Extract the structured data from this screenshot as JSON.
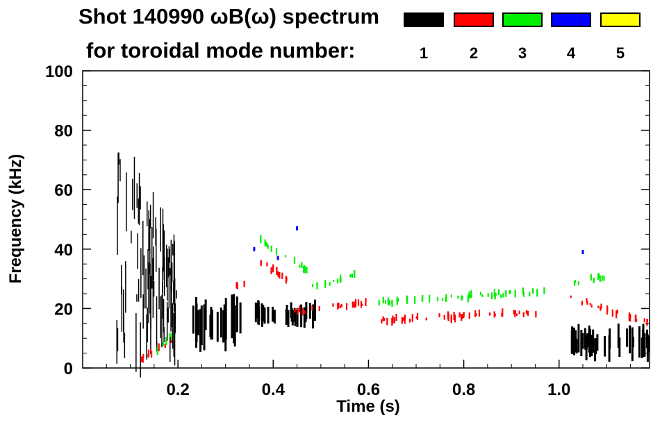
{
  "title_line1": "Shot 140990 ωB(ω) spectrum",
  "title_line2": "for toroidal mode number:",
  "legend": [
    {
      "label": "1",
      "color": "#000000"
    },
    {
      "label": "2",
      "color": "#ff0000"
    },
    {
      "label": "3",
      "color": "#00ee00"
    },
    {
      "label": "4",
      "color": "#0000ff"
    },
    {
      "label": "5",
      "color": "#ffff00"
    }
  ],
  "chart_data": {
    "type": "heatmap",
    "title": "Shot 140990 ωB(ω) spectrum",
    "xlabel": "Time (s)",
    "ylabel": "Frequency (kHz)",
    "xlim": [
      0.0,
      1.19
    ],
    "ylim": [
      0,
      100
    ],
    "x_ticks": [
      "0.2",
      "0.4",
      "0.6",
      "0.8",
      "1.0"
    ],
    "x_tick_values": [
      0.2,
      0.4,
      0.6,
      0.8,
      1.0
    ],
    "y_ticks": [
      "0",
      "20",
      "40",
      "60",
      "80",
      "100"
    ],
    "y_tick_values": [
      0,
      20,
      40,
      60,
      80,
      100
    ],
    "legend_title": "for toroidal mode number:",
    "legend_position": "top-right",
    "series": [
      {
        "name": "1",
        "color": "#000000",
        "features": [
          {
            "t": [
              0.07,
              0.2
            ],
            "f": [
              5,
              72
            ],
            "kind": "broadband"
          },
          {
            "t": [
              0.23,
              0.33
            ],
            "f": [
              5,
              25
            ],
            "kind": "burst"
          },
          {
            "t": [
              0.36,
              0.49
            ],
            "f": [
              13,
              23
            ],
            "kind": "burst"
          },
          {
            "t": [
              1.02,
              1.19
            ],
            "f": [
              2,
              15
            ],
            "kind": "burst"
          }
        ]
      },
      {
        "name": "2",
        "color": "#ff0000",
        "features": [
          {
            "t": [
              0.12,
              0.19
            ],
            "f": [
              3,
              10
            ],
            "kind": "chirp"
          },
          {
            "t": [
              0.32,
              0.34
            ],
            "f": [
              27,
              29
            ],
            "kind": "mode"
          },
          {
            "t": [
              0.37,
              0.46
            ],
            "f": [
              36,
              26
            ],
            "kind": "chirp"
          },
          {
            "t": [
              0.44,
              0.6
            ],
            "f": [
              19,
              22
            ],
            "kind": "mode"
          },
          {
            "t": [
              0.62,
              0.98
            ],
            "f": [
              16,
              19
            ],
            "kind": "mode"
          },
          {
            "t": [
              1.02,
              1.19
            ],
            "f": [
              24,
              15
            ],
            "kind": "chirp"
          }
        ]
      },
      {
        "name": "3",
        "color": "#00ee00",
        "features": [
          {
            "t": [
              0.15,
              0.19
            ],
            "f": [
              5,
              12
            ],
            "kind": "chirp"
          },
          {
            "t": [
              0.37,
              0.48
            ],
            "f": [
              43,
              32
            ],
            "kind": "chirp"
          },
          {
            "t": [
              0.48,
              0.57
            ],
            "f": [
              27,
              31
            ],
            "kind": "mode"
          },
          {
            "t": [
              0.62,
              0.98
            ],
            "f": [
              22,
              26
            ],
            "kind": "mode"
          },
          {
            "t": [
              1.03,
              1.1
            ],
            "f": [
              29,
              31
            ],
            "kind": "mode"
          }
        ]
      },
      {
        "name": "4",
        "color": "#0000ff",
        "features": [
          {
            "t": [
              0.36,
              0.36
            ],
            "f": [
              40,
              40
            ],
            "kind": "spot"
          },
          {
            "t": [
              0.41,
              0.41
            ],
            "f": [
              37,
              37
            ],
            "kind": "spot"
          },
          {
            "t": [
              0.45,
              0.45
            ],
            "f": [
              47,
              47
            ],
            "kind": "spot"
          },
          {
            "t": [
              1.05,
              1.05
            ],
            "f": [
              39,
              39
            ],
            "kind": "spot"
          }
        ]
      },
      {
        "name": "5",
        "color": "#ffff00",
        "features": []
      }
    ]
  }
}
